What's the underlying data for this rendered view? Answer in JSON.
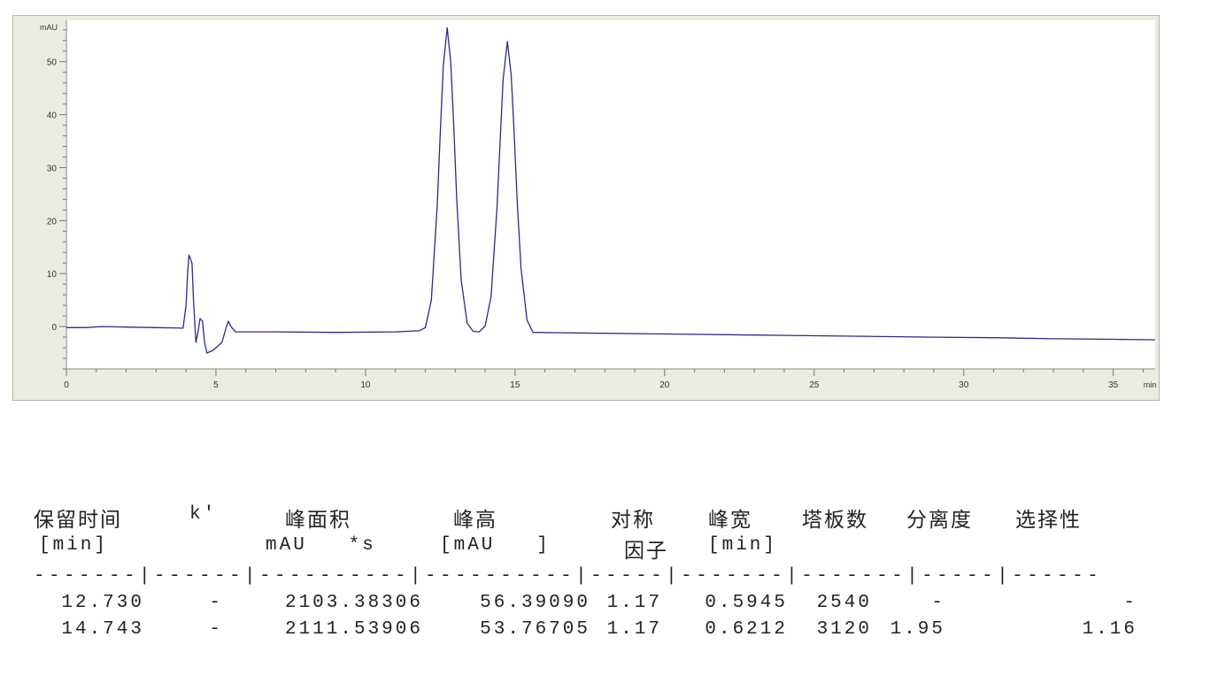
{
  "chart_data": {
    "type": "line",
    "ylabel": "mAU",
    "xlabel": "min",
    "xlim": [
      0,
      36.4
    ],
    "ylim": [
      -8,
      57.8
    ],
    "x_ticks": [
      0,
      5,
      10,
      15,
      20,
      25,
      30,
      35
    ],
    "y_ticks": [
      0,
      10,
      20,
      30,
      40,
      50
    ],
    "line_color": "#2a2a8c",
    "grid": false,
    "points": [
      [
        0,
        -0.2
      ],
      [
        0.6,
        -0.2
      ],
      [
        1.2,
        0
      ],
      [
        2.0,
        -0.1
      ],
      [
        3.0,
        -0.2
      ],
      [
        3.9,
        -0.3
      ],
      [
        4.0,
        4
      ],
      [
        4.05,
        10
      ],
      [
        4.1,
        13.5
      ],
      [
        4.2,
        12
      ],
      [
        4.25,
        5
      ],
      [
        4.33,
        -3
      ],
      [
        4.4,
        -1
      ],
      [
        4.47,
        1.5
      ],
      [
        4.55,
        1
      ],
      [
        4.62,
        -3
      ],
      [
        4.7,
        -5
      ],
      [
        4.9,
        -4.5
      ],
      [
        5.2,
        -3
      ],
      [
        5.35,
        0
      ],
      [
        5.42,
        1
      ],
      [
        5.5,
        0
      ],
      [
        5.65,
        -1
      ],
      [
        7,
        -1
      ],
      [
        9,
        -1.1
      ],
      [
        11,
        -1
      ],
      [
        11.8,
        -0.8
      ],
      [
        12.0,
        -0.2
      ],
      [
        12.2,
        5.0
      ],
      [
        12.4,
        23
      ],
      [
        12.5,
        36.6
      ],
      [
        12.6,
        49.2
      ],
      [
        12.73,
        56.4
      ],
      [
        12.85,
        50
      ],
      [
        12.95,
        38
      ],
      [
        13.05,
        24
      ],
      [
        13.2,
        8.8
      ],
      [
        13.4,
        0.6
      ],
      [
        13.6,
        -0.9
      ],
      [
        13.8,
        -1
      ],
      [
        14.0,
        0.1
      ],
      [
        14.2,
        5.7
      ],
      [
        14.4,
        22.8
      ],
      [
        14.5,
        35
      ],
      [
        14.6,
        46.7
      ],
      [
        14.743,
        53.8
      ],
      [
        14.87,
        47.5
      ],
      [
        14.97,
        36.4
      ],
      [
        15.07,
        24
      ],
      [
        15.2,
        11
      ],
      [
        15.4,
        1.2
      ],
      [
        15.6,
        -1.1
      ],
      [
        17,
        -1.2
      ],
      [
        20,
        -1.4
      ],
      [
        23,
        -1.6
      ],
      [
        26,
        -1.8
      ],
      [
        29,
        -2.0
      ],
      [
        31,
        -2.1
      ],
      [
        33,
        -2.3
      ],
      [
        35,
        -2.4
      ],
      [
        36.4,
        -2.5
      ]
    ]
  },
  "table": {
    "header1": [
      "保留时间",
      "k'",
      "峰面积",
      "峰高",
      "对称",
      "峰宽",
      "塔板数",
      "分离度",
      "选择性"
    ],
    "header2": [
      "[min]",
      "mAU   *s",
      "[mAU   ]",
      "因子",
      "[min]"
    ],
    "separator": "-------|------|----------|----------|-----|-------|-------|-----|------",
    "rows": [
      [
        "12.730",
        "-",
        "2103.38306",
        "56.39090",
        "1.17",
        "0.5945",
        "2540",
        "-",
        "-"
      ],
      [
        "14.743",
        "-",
        "2111.53906",
        "53.76705",
        "1.17",
        "0.6212",
        "3120",
        "1.95",
        "1.16"
      ]
    ]
  }
}
